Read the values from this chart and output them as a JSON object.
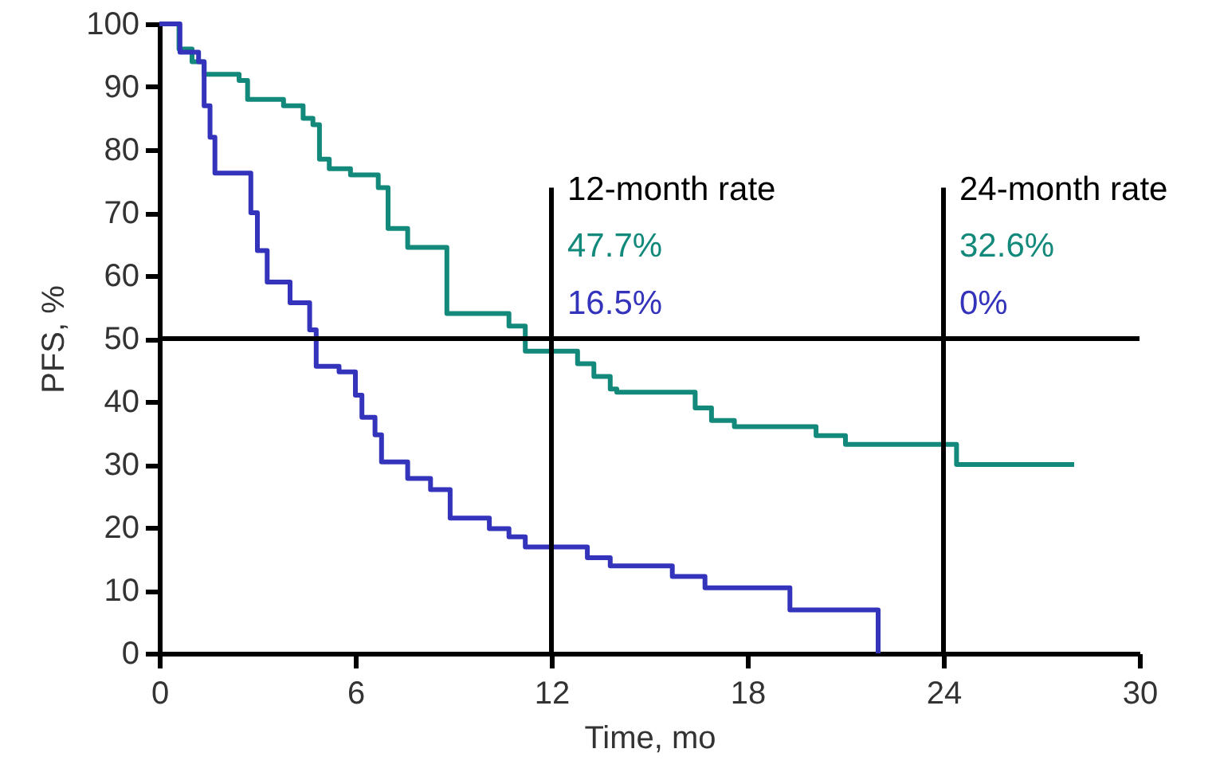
{
  "chart_data": {
    "type": "step",
    "xlabel": "Time, mo",
    "ylabel": "PFS, %",
    "xlim": [
      0,
      30
    ],
    "xticks": [
      0,
      6,
      12,
      18,
      24,
      30
    ],
    "ylim": [
      0,
      100
    ],
    "yticks": [
      0,
      10,
      20,
      30,
      40,
      50,
      60,
      70,
      80,
      90,
      100
    ],
    "grid": false,
    "series": [
      {
        "color": "#12897a",
        "x": [
          0,
          0.6,
          1.0,
          1.37,
          2.44,
          2.7,
          3.8,
          4.4,
          4.7,
          4.9,
          5.2,
          5.85,
          6.7,
          7.0,
          7.6,
          8.8,
          9.6,
          10.7,
          11.2,
          12.8,
          13.3,
          13.8,
          14.0,
          16.4,
          16.9,
          17.6,
          17.9,
          20.1,
          21.0,
          24.4,
          28.0
        ],
        "values": [
          100,
          96,
          94,
          92,
          91,
          88,
          87,
          85,
          84,
          78.5,
          77,
          76,
          74,
          67.5,
          64.5,
          54,
          54,
          52,
          48,
          46,
          44,
          42,
          41.5,
          39,
          37,
          36,
          36,
          34.6,
          33.2,
          30,
          30
        ]
      },
      {
        "color": "#3333bb",
        "x": [
          0,
          0.63,
          1.2,
          1.37,
          1.55,
          1.7,
          2.8,
          3.0,
          3.3,
          4.0,
          4.6,
          4.8,
          5.5,
          6.0,
          6.2,
          6.6,
          6.8,
          7.6,
          8.3,
          8.9,
          10.1,
          10.7,
          11.2,
          13.1,
          13.8,
          15.7,
          16.7,
          19.3,
          22.0
        ],
        "values": [
          100,
          95.5,
          94,
          87,
          82,
          76.3,
          70,
          64,
          59,
          55.7,
          51.4,
          45.6,
          44.7,
          41,
          37.5,
          34.7,
          30.4,
          27.8,
          26,
          21.5,
          19.8,
          18.5,
          16.9,
          15.2,
          13.9,
          12.2,
          10.4,
          6.9,
          0
        ]
      }
    ],
    "ref_lines": [
      {
        "axis": "y",
        "value": 50
      },
      {
        "axis": "x",
        "value": 12,
        "label": "12-month rate"
      },
      {
        "axis": "x",
        "value": 24,
        "label": "24-month rate"
      }
    ],
    "annotations": [
      "47.7%",
      "16.5%",
      "32.6%",
      "0%"
    ]
  }
}
